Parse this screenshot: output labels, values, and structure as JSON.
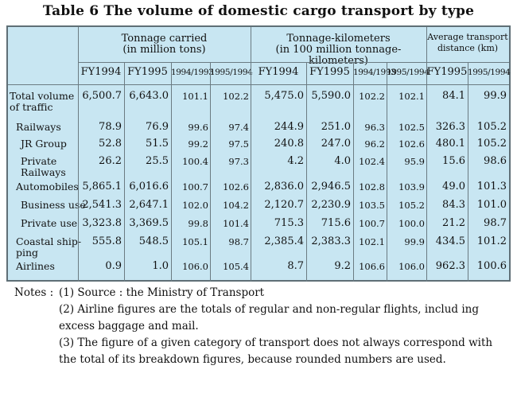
{
  "title": "Table 6 The volume of domestic cargo transport by type",
  "table": {
    "group_headers": {
      "tonnage": [
        "Tonnage carried",
        "(in million tons)"
      ],
      "tonkm": [
        "Tonnage-kilometers",
        "(in 100 million tonnage-kilometers)"
      ],
      "avg": [
        "Average transport",
        "distance (km)"
      ]
    },
    "sub_headers": [
      "FY1994",
      "FY1995",
      "1994/1993",
      "1995/1994",
      "FY1994",
      "FY1995",
      "1994/1993",
      "1995/1994",
      "FY1995",
      "1995/1994"
    ],
    "rows": [
      {
        "label": [
          "Total  volume",
          "of traffic"
        ],
        "values": [
          "6,500.7",
          "6,643.0",
          "101.1",
          "102.2",
          "5,475.0",
          "5,590.0",
          "102.2",
          "102.1",
          "84.1",
          "99.9"
        ]
      },
      {
        "label": [
          "Railways"
        ],
        "values": [
          "78.9",
          "76.9",
          "99.6",
          "97.4",
          "244.9",
          "251.0",
          "96.3",
          "102.5",
          "326.3",
          "105.2"
        ]
      },
      {
        "label": [
          "JR Group"
        ],
        "values": [
          "52.8",
          "51.5",
          "99.2",
          "97.5",
          "240.8",
          "247.0",
          "96.2",
          "102.6",
          "480.1",
          "105.2"
        ]
      },
      {
        "label": [
          "Private",
          "Railways"
        ],
        "values": [
          "26.2",
          "25.5",
          "100.4",
          "97.3",
          "4.2",
          "4.0",
          "102.4",
          "95.9",
          "15.6",
          "98.6"
        ]
      },
      {
        "label": [
          "Automobiles"
        ],
        "values": [
          "5,865.1",
          "6,016.6",
          "100.7",
          "102.6",
          "2,836.0",
          "2,946.5",
          "102.8",
          "103.9",
          "49.0",
          "101.3"
        ]
      },
      {
        "label": [
          "Business use"
        ],
        "values": [
          "2,541.3",
          "2,647.1",
          "102.0",
          "104.2",
          "2,120.7",
          "2,230.9",
          "103.5",
          "105.2",
          "84.3",
          "101.0"
        ]
      },
      {
        "label": [
          "Private use"
        ],
        "values": [
          "3,323.8",
          "3,369.5",
          "99.8",
          "101.4",
          "715.3",
          "715.6",
          "100.7",
          "100.0",
          "21.2",
          "98.7"
        ]
      },
      {
        "label": [
          "Coastal ship-",
          "ping"
        ],
        "values": [
          "555.8",
          "548.5",
          "105.1",
          "98.7",
          "2,385.4",
          "2,383.3",
          "102.1",
          "99.9",
          "434.5",
          "101.2"
        ]
      },
      {
        "label": [
          "Airlines"
        ],
        "values": [
          "0.9",
          "1.0",
          "106.0",
          "105.4",
          "8.7",
          "9.2",
          "106.6",
          "106.0",
          "962.3",
          "100.6"
        ]
      }
    ]
  },
  "notes": {
    "prefix": "Notes :",
    "n1": "(1) Source : the Ministry of Transport",
    "n2": "(2) Airline figures are the totals of regular and non-regular flights, includ ing excess baggage and mail.",
    "n3": "(3) The figure of a given category of transport does not always correspond with the total of its breakdown figures, because rounded numbers are used."
  },
  "colors": {
    "table_bg": "#c8e6f2",
    "rule": "#6b7b82"
  }
}
